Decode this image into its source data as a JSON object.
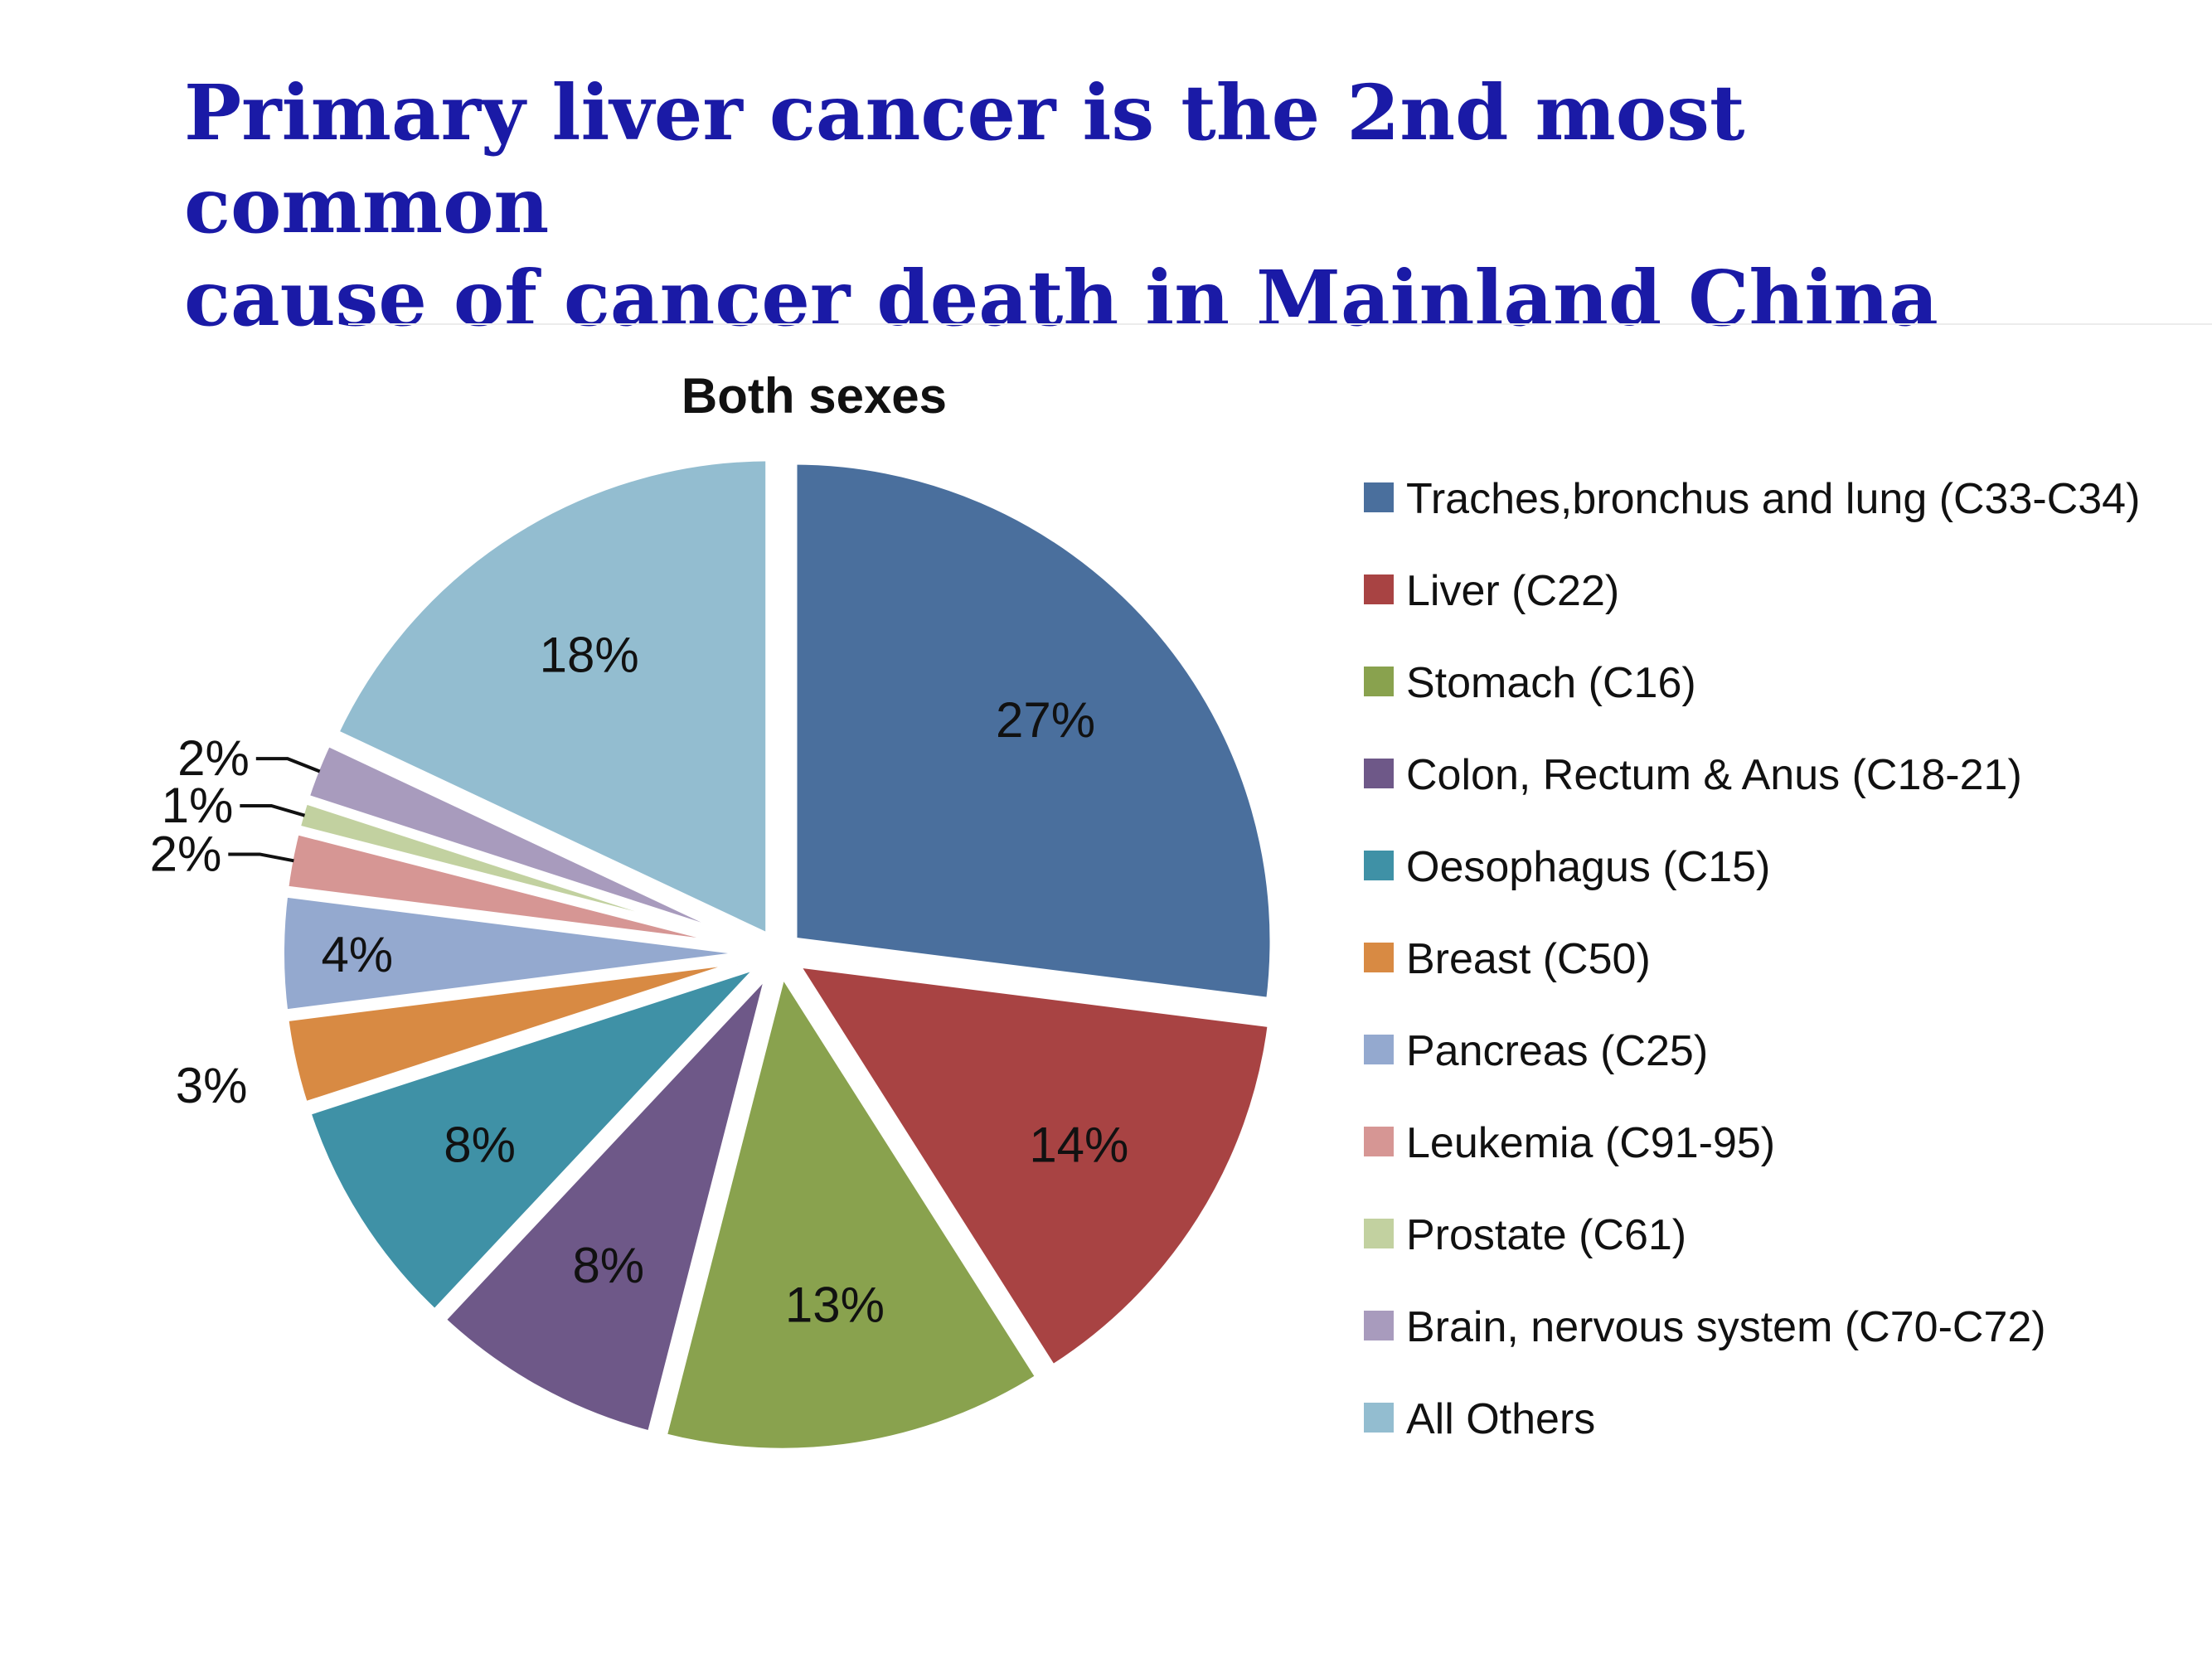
{
  "slide": {
    "title_line1": "Primary liver cancer is the 2nd most common",
    "title_line2": "cause of cancer death in Mainland China"
  },
  "chart_data": {
    "type": "pie",
    "title": "Both sexes",
    "legend_position": "right",
    "slices": [
      {
        "label": "Traches,bronchus and lung (C33-C34)",
        "value": 27,
        "display": "27%",
        "color": "#4a6f9d"
      },
      {
        "label": "Liver (C22)",
        "value": 14,
        "display": "14%",
        "color": "#a84343"
      },
      {
        "label": "Stomach (C16)",
        "value": 13,
        "display": "13%",
        "color": "#89a24e"
      },
      {
        "label": "Colon, Rectum & Anus (C18-21)",
        "value": 8,
        "display": "8%",
        "color": "#6e5888"
      },
      {
        "label": "Oesophagus (C15)",
        "value": 8,
        "display": "8%",
        "color": "#3f91a6"
      },
      {
        "label": "Breast (C50)",
        "value": 3,
        "display": "3%",
        "color": "#d88a43"
      },
      {
        "label": "Pancreas (C25)",
        "value": 4,
        "display": "4%",
        "color": "#94a9cf"
      },
      {
        "label": "Leukemia (C91-95)",
        "value": 2,
        "display": "2%",
        "color": "#d69694"
      },
      {
        "label": "Prostate (C61)",
        "value": 1,
        "display": "1%",
        "color": "#c2d1a0"
      },
      {
        "label": "Brain, nervous system (C70-C72)",
        "value": 2,
        "display": "2%",
        "color": "#a89bbd"
      },
      {
        "label": "All Others",
        "value": 18,
        "display": "18%",
        "color": "#93bdd0"
      }
    ]
  }
}
